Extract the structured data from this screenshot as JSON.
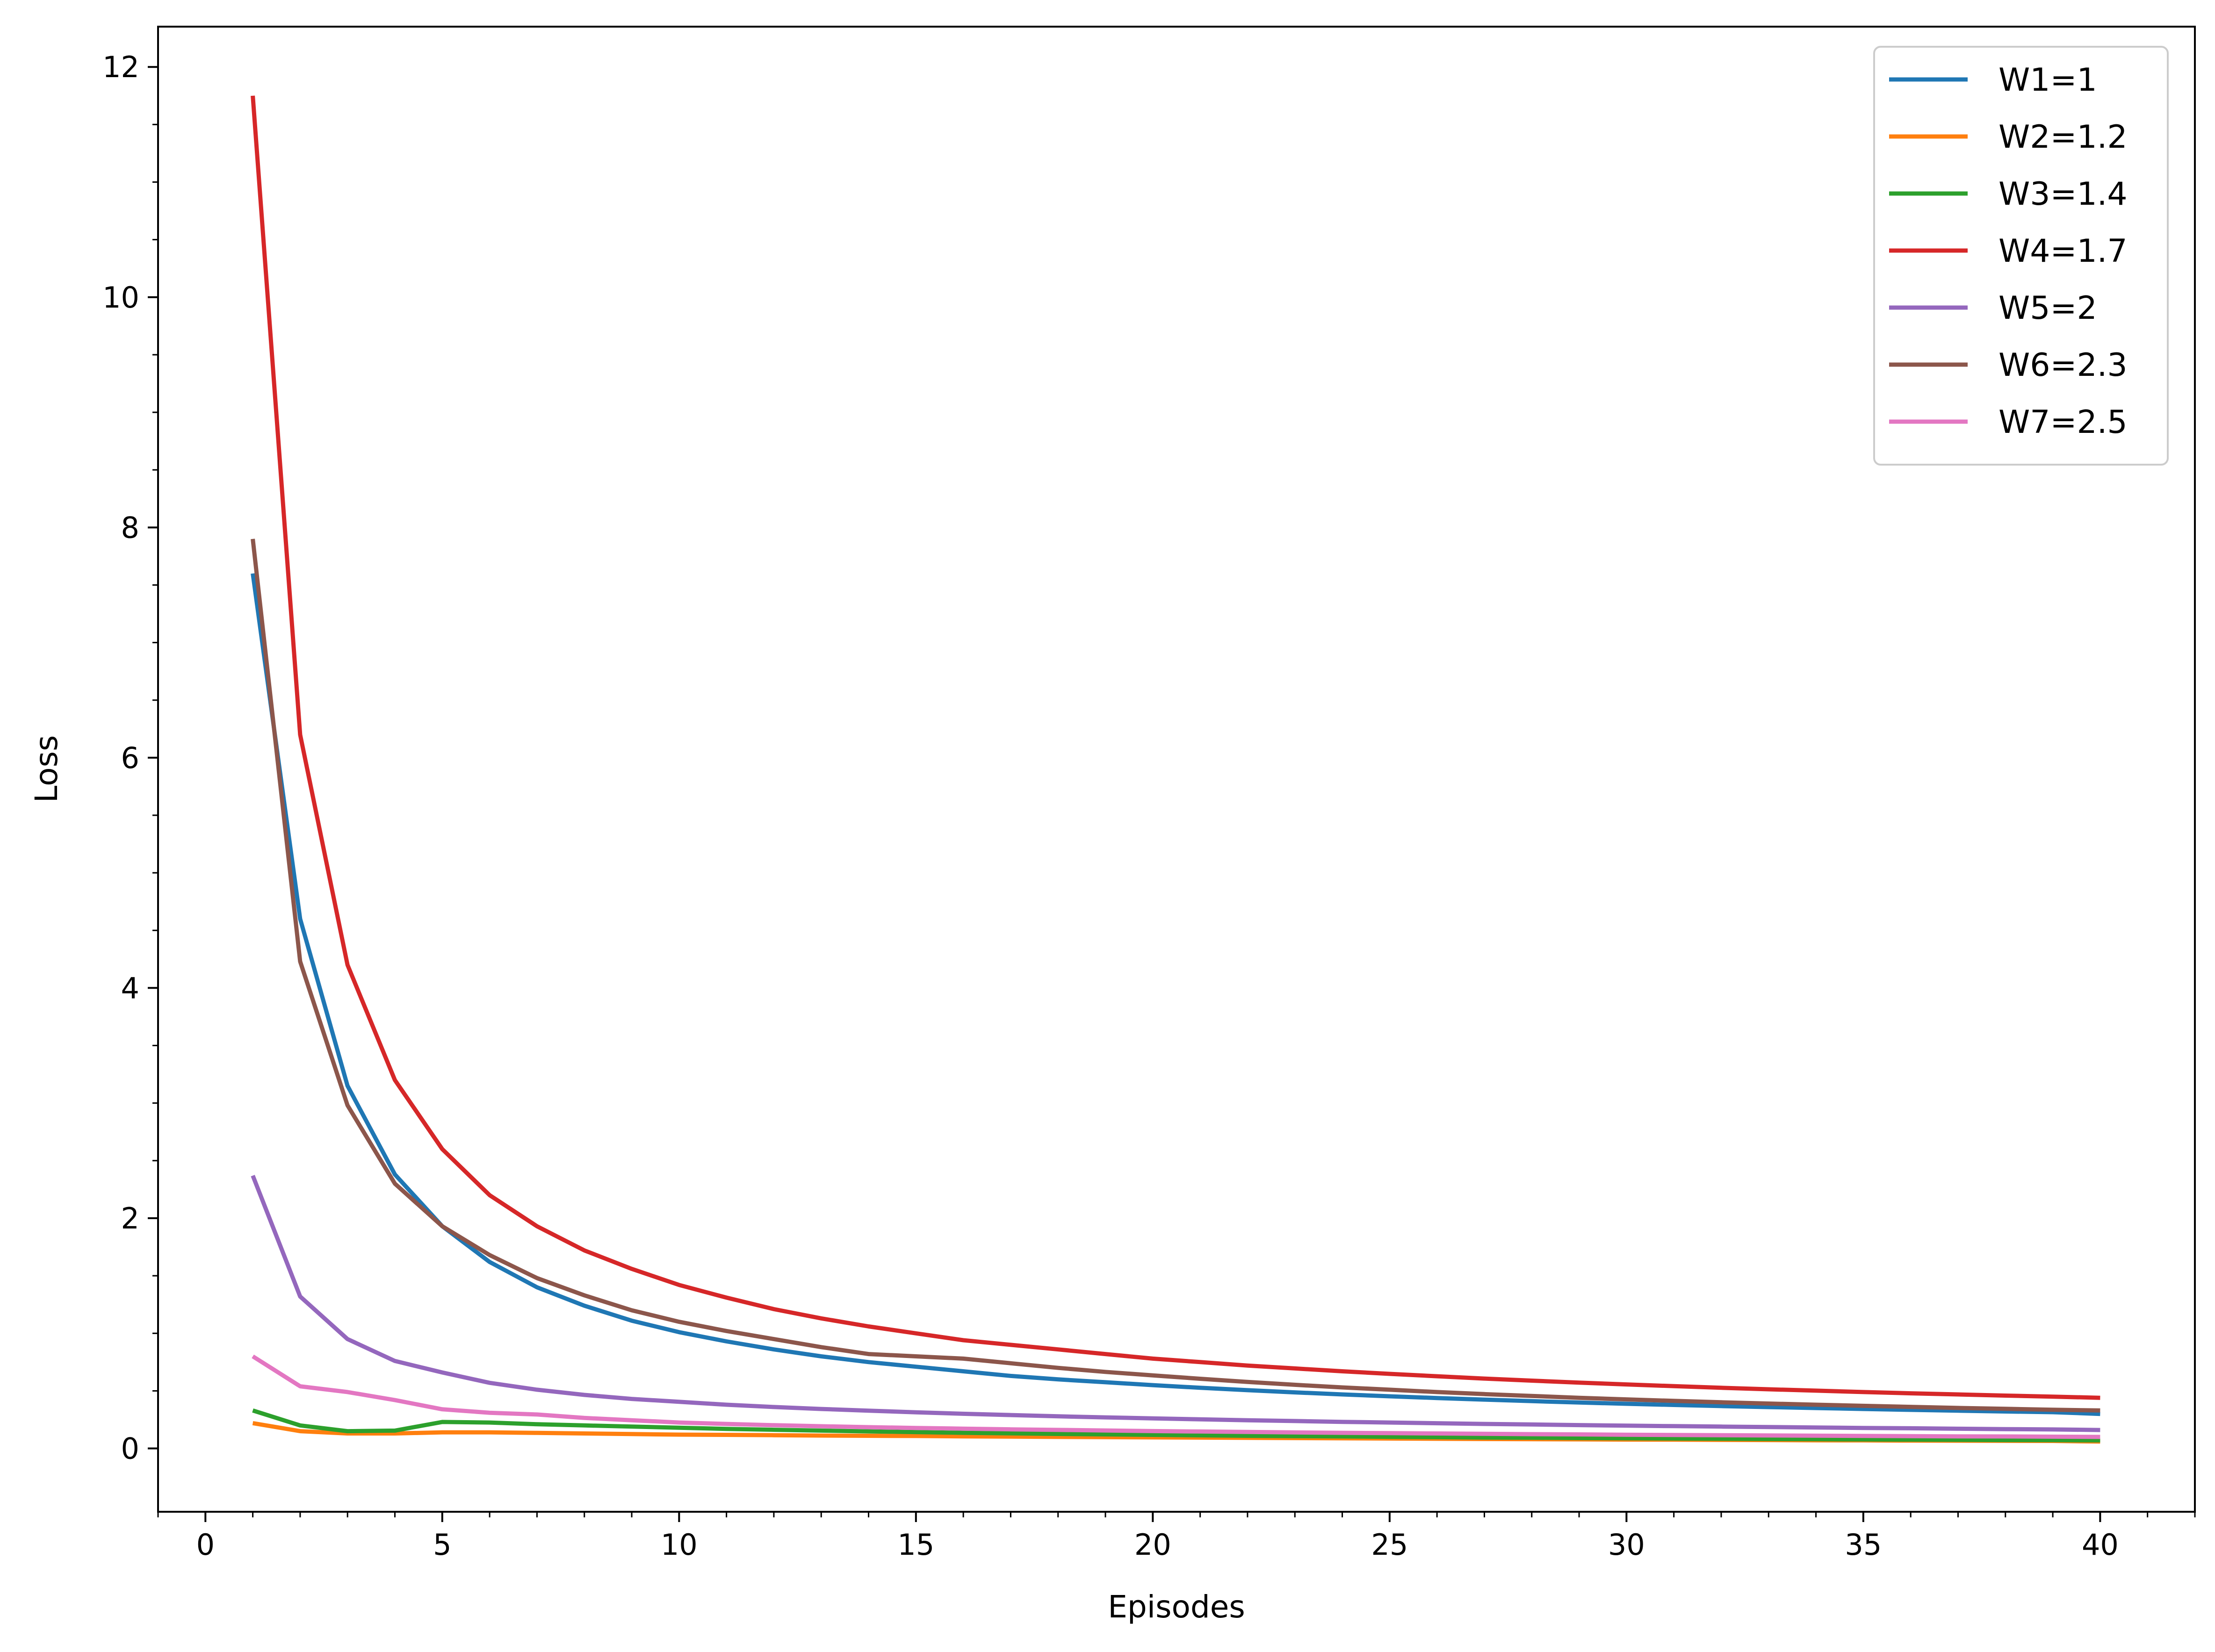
{
  "chart_data": {
    "type": "line",
    "title": "",
    "xlabel": "Episodes",
    "ylabel": "Loss",
    "xlim": [
      -1,
      42
    ],
    "ylim": [
      -0.55,
      12.35
    ],
    "x_ticks": [
      0,
      5,
      10,
      15,
      20,
      25,
      30,
      35,
      40
    ],
    "y_ticks": [
      0,
      2,
      4,
      6,
      8,
      10,
      12
    ],
    "grid": false,
    "legend_position": "top-right",
    "x": [
      1,
      2,
      3,
      4,
      5,
      6,
      7,
      8,
      9,
      10,
      11,
      12,
      13,
      14,
      15,
      16,
      17,
      18,
      19,
      20,
      21,
      22,
      23,
      24,
      25,
      26,
      27,
      28,
      29,
      30,
      31,
      32,
      33,
      34,
      35,
      36,
      37,
      38,
      39,
      40
    ],
    "series": [
      {
        "name": "W1=1",
        "color": "#1f77b4",
        "values": [
          7.6,
          4.6,
          3.15,
          2.38,
          1.93,
          1.62,
          1.4,
          1.24,
          1.11,
          1.01,
          0.93,
          0.86,
          0.8,
          0.75,
          0.71,
          0.67,
          0.63,
          0.6,
          0.575,
          0.55,
          0.527,
          0.506,
          0.487,
          0.469,
          0.453,
          0.438,
          0.424,
          0.411,
          0.399,
          0.388,
          0.378,
          0.368,
          0.359,
          0.351,
          0.343,
          0.335,
          0.328,
          0.321,
          0.315,
          0.3
        ]
      },
      {
        "name": "W2=1.2",
        "color": "#ff7f0e",
        "values": [
          0.22,
          0.15,
          0.13,
          0.13,
          0.14,
          0.14,
          0.135,
          0.13,
          0.125,
          0.12,
          0.118,
          0.115,
          0.112,
          0.11,
          0.108,
          0.105,
          0.103,
          0.1,
          0.098,
          0.096,
          0.094,
          0.092,
          0.09,
          0.088,
          0.086,
          0.084,
          0.082,
          0.08,
          0.079,
          0.077,
          0.076,
          0.074,
          0.073,
          0.071,
          0.07,
          0.068,
          0.067,
          0.066,
          0.065,
          0.06
        ]
      },
      {
        "name": "W3=1.4",
        "color": "#2ca02c",
        "values": [
          0.33,
          0.2,
          0.15,
          0.155,
          0.23,
          0.225,
          0.21,
          0.2,
          0.19,
          0.18,
          0.17,
          0.162,
          0.155,
          0.148,
          0.142,
          0.136,
          0.131,
          0.126,
          0.122,
          0.118,
          0.114,
          0.11,
          0.107,
          0.104,
          0.101,
          0.098,
          0.095,
          0.093,
          0.09,
          0.088,
          0.086,
          0.084,
          0.082,
          0.08,
          0.078,
          0.076,
          0.075,
          0.073,
          0.072,
          0.07
        ]
      },
      {
        "name": "W4=1.7",
        "color": "#d62728",
        "values": [
          11.75,
          6.2,
          4.2,
          3.2,
          2.6,
          2.2,
          1.93,
          1.72,
          1.56,
          1.42,
          1.31,
          1.21,
          1.13,
          1.06,
          1.0,
          0.94,
          0.9,
          0.86,
          0.82,
          0.78,
          0.75,
          0.72,
          0.695,
          0.67,
          0.648,
          0.627,
          0.607,
          0.589,
          0.572,
          0.556,
          0.541,
          0.527,
          0.514,
          0.502,
          0.49,
          0.479,
          0.469,
          0.459,
          0.45,
          0.44
        ]
      },
      {
        "name": "W5=2",
        "color": "#9467bd",
        "values": [
          2.37,
          1.32,
          0.95,
          0.76,
          0.66,
          0.57,
          0.51,
          0.465,
          0.43,
          0.405,
          0.38,
          0.36,
          0.343,
          0.328,
          0.314,
          0.301,
          0.29,
          0.279,
          0.27,
          0.261,
          0.253,
          0.245,
          0.238,
          0.231,
          0.225,
          0.219,
          0.213,
          0.208,
          0.203,
          0.198,
          0.194,
          0.19,
          0.186,
          0.182,
          0.178,
          0.175,
          0.171,
          0.168,
          0.165,
          0.16
        ]
      },
      {
        "name": "W6=2.3",
        "color": "#8c564b",
        "values": [
          7.9,
          4.23,
          2.98,
          2.3,
          1.93,
          1.68,
          1.48,
          1.33,
          1.2,
          1.1,
          1.02,
          0.95,
          0.88,
          0.82,
          0.8,
          0.78,
          0.74,
          0.7,
          0.665,
          0.635,
          0.605,
          0.578,
          0.553,
          0.53,
          0.51,
          0.49,
          0.472,
          0.456,
          0.44,
          0.426,
          0.413,
          0.401,
          0.39,
          0.38,
          0.37,
          0.361,
          0.352,
          0.344,
          0.336,
          0.33
        ]
      },
      {
        "name": "W7=2.5",
        "color": "#e377c2",
        "values": [
          0.8,
          0.54,
          0.49,
          0.42,
          0.34,
          0.31,
          0.295,
          0.265,
          0.245,
          0.225,
          0.213,
          0.202,
          0.193,
          0.185,
          0.178,
          0.172,
          0.166,
          0.161,
          0.156,
          0.151,
          0.147,
          0.143,
          0.139,
          0.136,
          0.133,
          0.13,
          0.127,
          0.124,
          0.122,
          0.119,
          0.117,
          0.115,
          0.113,
          0.111,
          0.109,
          0.107,
          0.105,
          0.104,
          0.102,
          0.1
        ]
      }
    ]
  }
}
